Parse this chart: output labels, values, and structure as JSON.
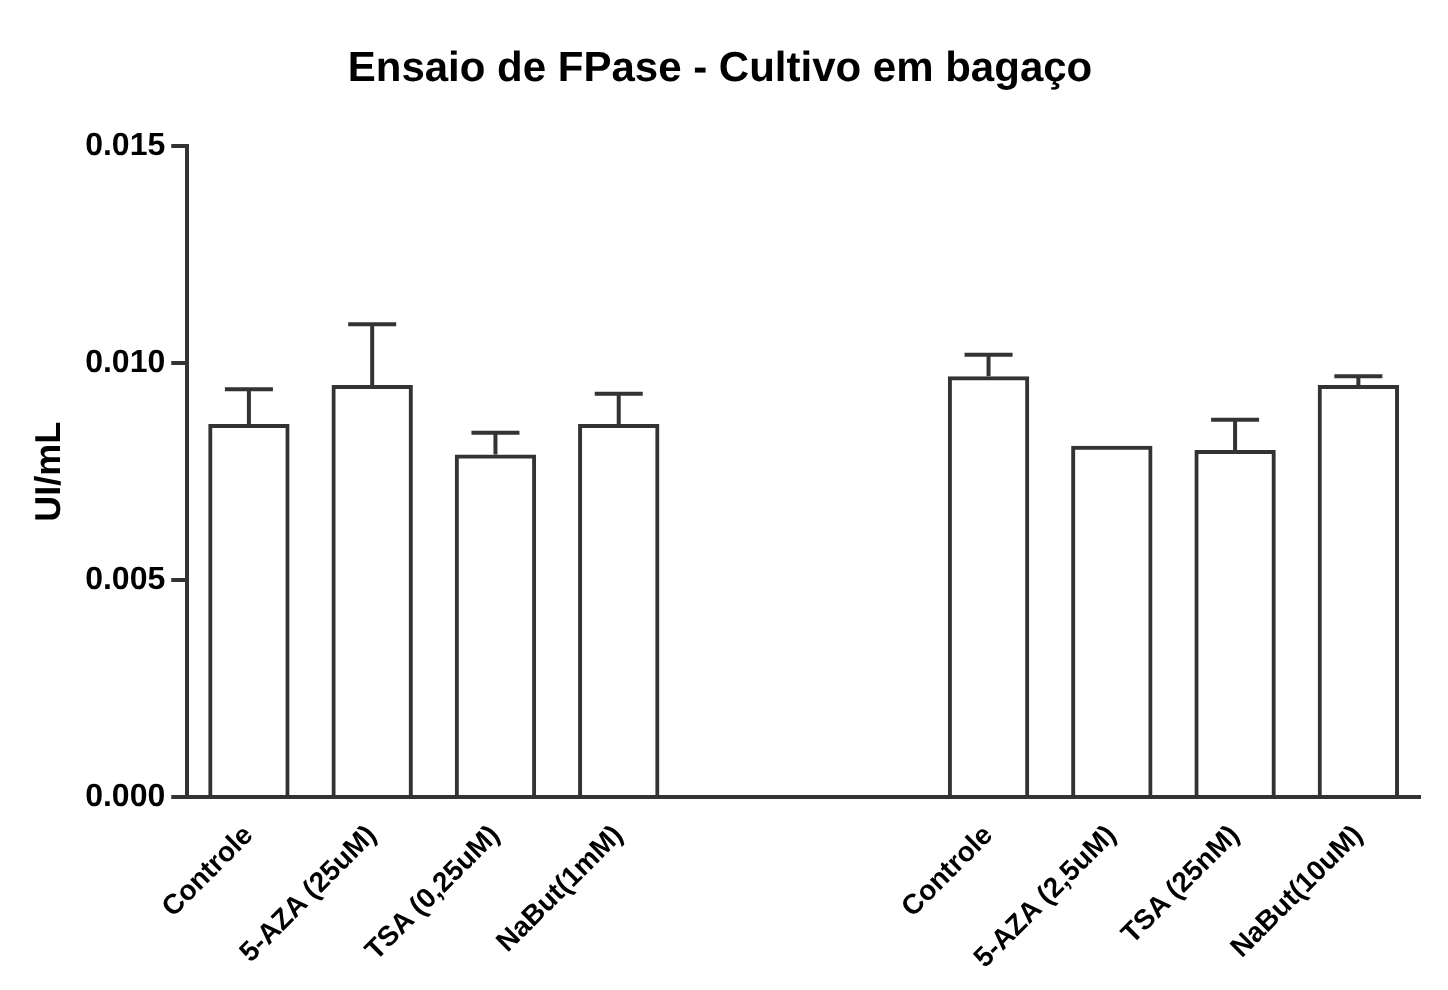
{
  "chart_data": {
    "type": "bar",
    "title": "Ensaio de FPase - Cultivo em bagaço",
    "ylabel": "UI/mL",
    "categories": [
      "Controle",
      "5-AZA (25uM)",
      "TSA (0,25uM)",
      "NaBut(1mM)",
      null,
      null,
      "Controle",
      "5-AZA (2,5uM)",
      "TSA (25nM)",
      "NaBut(10uM)"
    ],
    "values": [
      0.0086,
      0.0095,
      0.0079,
      0.0086,
      null,
      null,
      0.0097,
      0.0081,
      0.008,
      0.0095
    ],
    "errors": [
      0.0008,
      0.0014,
      0.0005,
      0.0007,
      null,
      null,
      0.0005,
      null,
      0.0007,
      0.0002
    ],
    "colors": [
      "#333333",
      "#333333",
      "#333333",
      "#333333",
      "#333333",
      "#333333",
      "#333333",
      "#333333",
      "#333333",
      "#333333"
    ],
    "ylim": [
      0,
      0.015
    ],
    "yticks": [
      {
        "value": 0,
        "label": "0.000"
      },
      {
        "value": 0.005,
        "label": "0.005"
      },
      {
        "value": 0.01,
        "label": "0.010"
      },
      {
        "value": 0.015,
        "label": "0.015"
      }
    ],
    "grid": false,
    "legend": false
  }
}
